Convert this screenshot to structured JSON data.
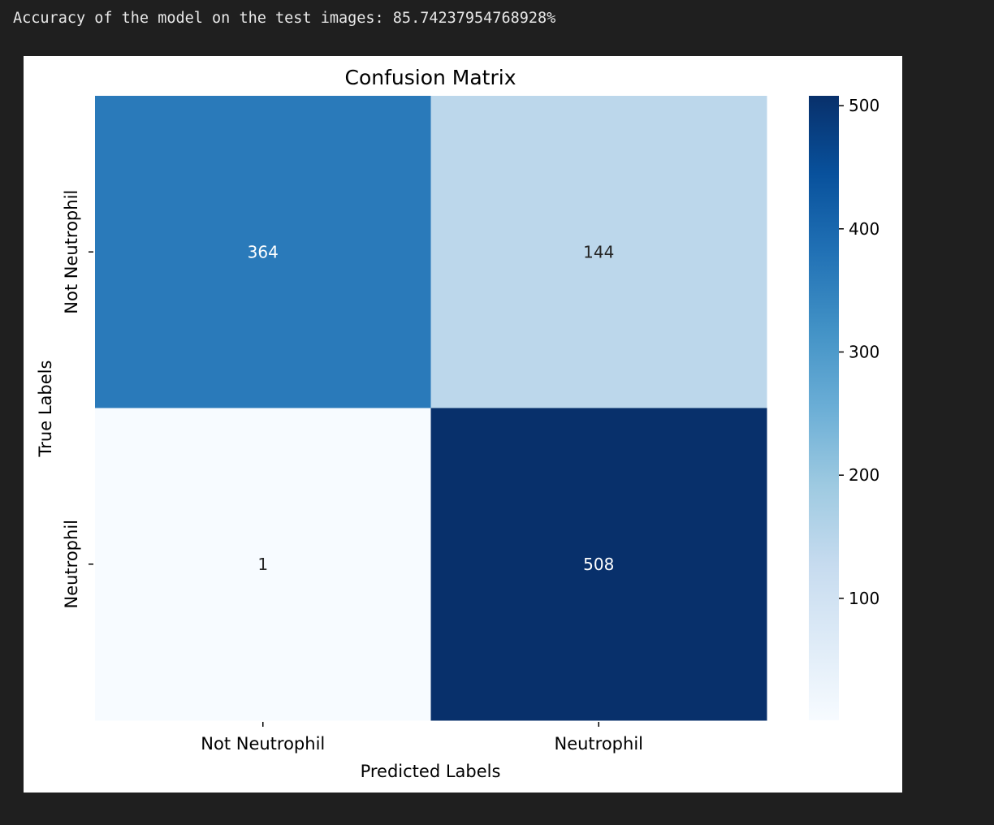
{
  "output": {
    "text": "Accuracy of the model on the test images: 85.74237954768928%"
  },
  "chart_data": {
    "type": "heatmap",
    "title": "Confusion Matrix",
    "xlabel": "Predicted Labels",
    "ylabel": "True Labels",
    "x_categories": [
      "Not Neutrophil",
      "Neutrophil"
    ],
    "y_categories": [
      "Not Neutrophil",
      "Neutrophil"
    ],
    "matrix": [
      [
        364,
        144
      ],
      [
        1,
        508
      ]
    ],
    "colormap": "Blues",
    "colorbar": {
      "range": [
        1,
        508
      ],
      "ticks": [
        100,
        200,
        300,
        400,
        500
      ]
    },
    "colors": {
      "low": "#f7fbff",
      "high": "#08306b"
    }
  }
}
